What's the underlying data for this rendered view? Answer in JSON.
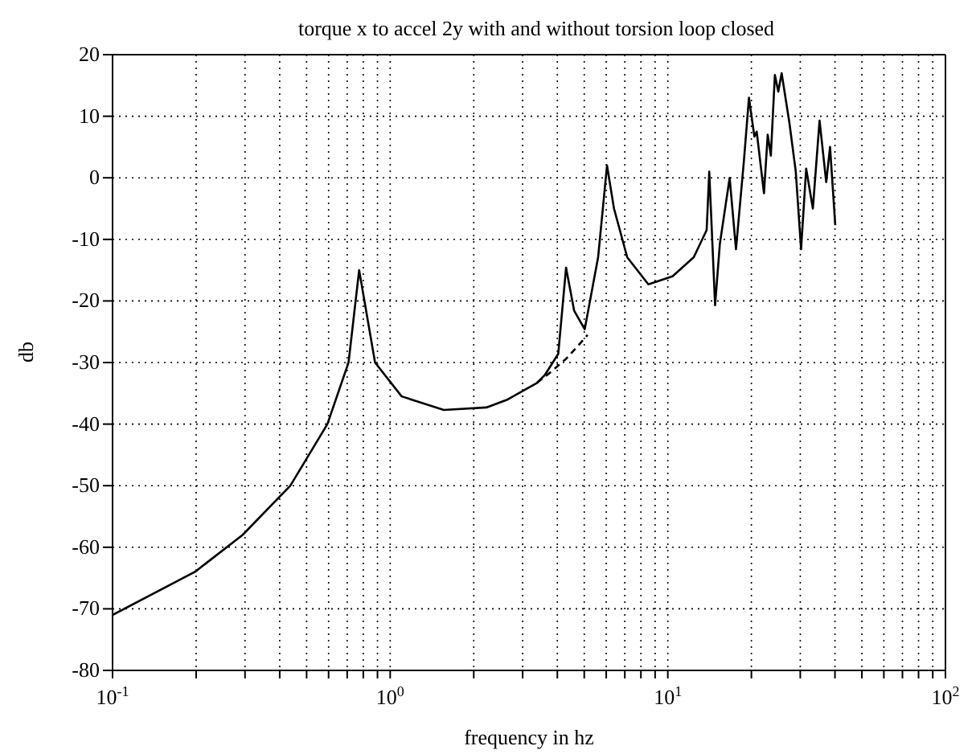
{
  "chart_data": {
    "type": "line",
    "title": "torque x to accel 2y with and without torsion loop closed",
    "xlabel": "frequency in hz",
    "ylabel": "db",
    "log": "x",
    "grid": true,
    "marker": "none",
    "xlim": [
      0.1,
      100
    ],
    "ylim": [
      -80,
      20
    ],
    "xticks": [
      {
        "value": 0.1,
        "label": "10$^{-1}$"
      },
      {
        "value": 0.2,
        "label": null
      },
      {
        "value": 0.3,
        "label": null
      },
      {
        "value": 0.4,
        "label": null
      },
      {
        "value": 0.5,
        "label": null
      },
      {
        "value": 0.6,
        "label": null
      },
      {
        "value": 0.7,
        "label": null
      },
      {
        "value": 0.8,
        "label": null
      },
      {
        "value": 0.9,
        "label": null
      },
      {
        "value": 1,
        "label": "10$^{0}$"
      },
      {
        "value": 2,
        "label": null
      },
      {
        "value": 3,
        "label": null
      },
      {
        "value": 4,
        "label": null
      },
      {
        "value": 5,
        "label": null
      },
      {
        "value": 6,
        "label": null
      },
      {
        "value": 7,
        "label": null
      },
      {
        "value": 8,
        "label": null
      },
      {
        "value": 9,
        "label": null
      },
      {
        "value": 10,
        "label": "10$^{1}$"
      },
      {
        "value": 20,
        "label": null
      },
      {
        "value": 30,
        "label": null
      },
      {
        "value": 40,
        "label": null
      },
      {
        "value": 50,
        "label": null
      },
      {
        "value": 60,
        "label": null
      },
      {
        "value": 70,
        "label": null
      },
      {
        "value": 80,
        "label": null
      },
      {
        "value": 90,
        "label": null
      },
      {
        "value": 100,
        "label": "10$^{2}$"
      }
    ],
    "yticks": [
      -80,
      -70,
      -60,
      -50,
      -40,
      -30,
      -20,
      -10,
      0,
      10,
      20
    ],
    "series": [
      {
        "color": "#000000",
        "line_style": "solid",
        "x": [
          0.1,
          0.198,
          0.294,
          0.437,
          0.594,
          0.708,
          0.773,
          0.882,
          1.1,
          1.56,
          2.22,
          2.65,
          3.38,
          3.61,
          4.03,
          4.3,
          4.6,
          5.02,
          5.61,
          6.04,
          6.4,
          7.14,
          8.51,
          10.4,
          12.4,
          13.8,
          14.1,
          14.8,
          15.4,
          16.7,
          17.6,
          18.8,
          19.6,
          20.5,
          20.9,
          22.2,
          22.9,
          23.5,
          24.3,
          25,
          25.7,
          27.4,
          28.9,
          30.2,
          31.5,
          33.3,
          35.2,
          37.2,
          38.4,
          40.1
        ],
        "values": [
          -71,
          -64,
          -58,
          -50,
          -40,
          -30,
          -15,
          -30,
          -35.5,
          -37.7,
          -37.3,
          -36,
          -33.3,
          -32,
          -28.6,
          -14.6,
          -21.6,
          -24.6,
          -12.9,
          2,
          -5,
          -12.9,
          -17.3,
          -16,
          -12.9,
          -8.5,
          1,
          -20.7,
          -10.7,
          0,
          -11.6,
          2.8,
          13,
          6.7,
          7.5,
          -2.5,
          7,
          3.6,
          16.7,
          14,
          17,
          9,
          1,
          -11.6,
          1.5,
          -5,
          9.3,
          -0.7,
          5,
          -7.7
        ]
      },
      {
        "color": "#000000",
        "line_style": "dashed",
        "x": [
          3.38,
          3.8,
          4.3,
          4.7,
          5.14
        ],
        "values": [
          -33.3,
          -31.5,
          -29.4,
          -27.5,
          -25.5
        ]
      }
    ]
  }
}
